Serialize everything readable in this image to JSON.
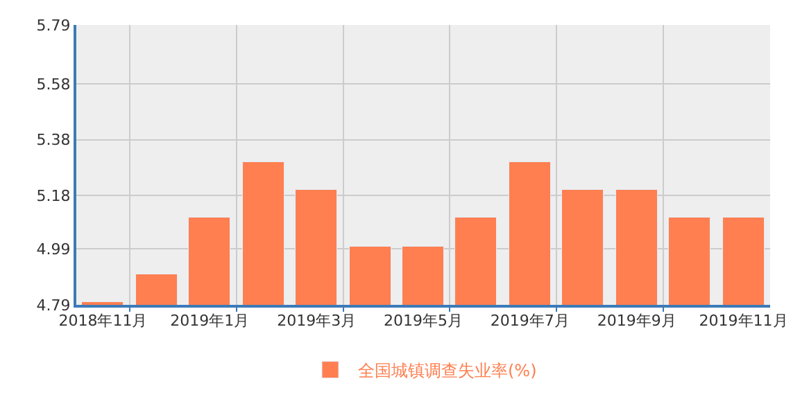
{
  "chart_data": {
    "type": "bar",
    "categories": [
      "2018年11月",
      null,
      "2019年1月",
      null,
      "2019年3月",
      null,
      "2019年5月",
      null,
      "2019年7月",
      null,
      "2019年9月",
      null,
      "2019年11月"
    ],
    "series": [
      {
        "name": "全国城镇调查失业率(%)",
        "color": "#ff7f50",
        "values": [
          4.8,
          4.9,
          5.1,
          5.3,
          5.2,
          5.0,
          5.0,
          5.1,
          5.3,
          5.2,
          5.2,
          5.1,
          5.1
        ]
      }
    ],
    "ylim": [
      4.79,
      5.79
    ],
    "yticks": [
      4.79,
      4.99,
      5.18,
      5.38,
      5.58,
      5.79
    ],
    "grid": true,
    "legend": "bottom"
  }
}
